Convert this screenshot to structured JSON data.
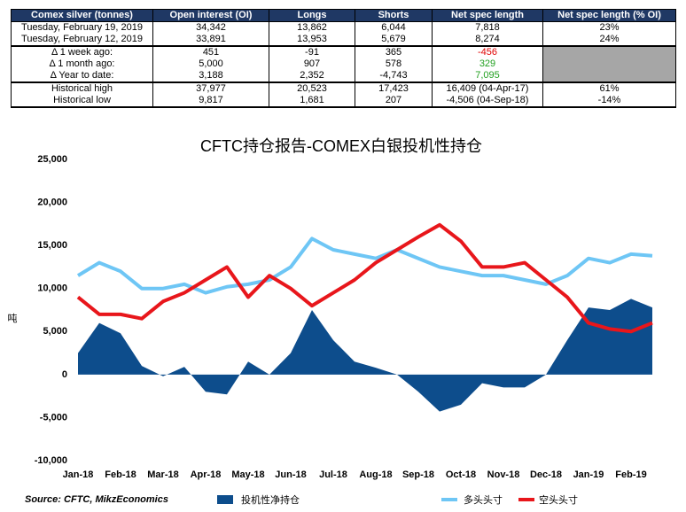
{
  "table": {
    "header": [
      "Comex silver (tonnes)",
      "Open interest (OI)",
      "Longs",
      "Shorts",
      "Net spec length",
      "Net spec length (% OI)"
    ],
    "rows": [
      [
        "Tuesday, February 19, 2019",
        "34,342",
        "13,862",
        "6,044",
        "7,818",
        "23%"
      ],
      [
        "Tuesday, February 12, 2019",
        "33,891",
        "13,953",
        "5,679",
        "8,274",
        "24%"
      ],
      [
        "Δ 1 week ago:",
        "451",
        "-91",
        "365",
        "-456"
      ],
      [
        "Δ 1 month ago:",
        "5,000",
        "907",
        "578",
        "329"
      ],
      [
        "Δ Year to date:",
        "3,188",
        "2,352",
        "-4,743",
        "7,095"
      ],
      [
        "Historical high",
        "37,977",
        "20,523",
        "17,423",
        "16,409  (04-Apr-17)",
        "61%"
      ],
      [
        "Historical low",
        "9,817",
        "1,681",
        "207",
        "-4,506  (04-Sep-18)",
        "-14%"
      ]
    ]
  },
  "chart_data": {
    "type": "line",
    "title": "CFTC持仓报告-COMEX白银投机性持仓",
    "y_label": "吨",
    "source": "Source: CFTC, MikzEconomics",
    "categories": [
      "Jan-18",
      null,
      "Feb-18",
      null,
      "Mar-18",
      null,
      "Apr-18",
      null,
      "May-18",
      null,
      "Jun-18",
      null,
      "Jul-18",
      null,
      "Aug-18",
      null,
      "Sep-18",
      null,
      "Oct-18",
      null,
      "Nov-18",
      null,
      "Dec-18",
      null,
      "Jan-19",
      null,
      "Feb-19",
      null
    ],
    "series": [
      {
        "name": "投机性净持仓",
        "type": "area",
        "color": "#0d4d8c",
        "values": [
          2500,
          6000,
          4800,
          1000,
          -200,
          900,
          -2000,
          -2300,
          1500,
          0,
          2500,
          7500,
          4000,
          1500,
          800,
          0,
          -2000,
          -4300,
          -3500,
          -1000,
          -1500,
          -1500,
          0,
          4000,
          7800,
          7500,
          8800,
          7800
        ]
      },
      {
        "name": "多头头寸",
        "type": "line",
        "color": "#6ec6f5",
        "values": [
          11500,
          13000,
          12000,
          10000,
          10000,
          10500,
          9500,
          10200,
          10500,
          11000,
          12500,
          15800,
          14500,
          14000,
          13500,
          14500,
          13500,
          12500,
          12000,
          11500,
          11500,
          11000,
          10500,
          11500,
          13500,
          13000,
          14000,
          13800
        ]
      },
      {
        "name": "空头头寸",
        "type": "line",
        "color": "#e8161b",
        "values": [
          9000,
          7000,
          7000,
          6500,
          8500,
          9500,
          11000,
          12500,
          9000,
          11500,
          10000,
          8000,
          9500,
          11000,
          13000,
          14500,
          16000,
          17400,
          15500,
          12500,
          12500,
          13000,
          11000,
          9000,
          6000,
          5300,
          5000,
          6000
        ]
      }
    ],
    "ylim": [
      -10000,
      25000
    ],
    "yticks": [
      {
        "value": -10000,
        "label": "-10,000"
      },
      {
        "value": -5000,
        "label": "-5,000"
      },
      0,
      {
        "value": 5000,
        "label": "5,000"
      },
      {
        "value": 10000,
        "label": "10,000"
      },
      {
        "value": 15000,
        "label": "15,000"
      },
      {
        "value": 20000,
        "label": "20,000"
      },
      {
        "value": 25000,
        "label": "25,000"
      }
    ],
    "grid": false
  }
}
